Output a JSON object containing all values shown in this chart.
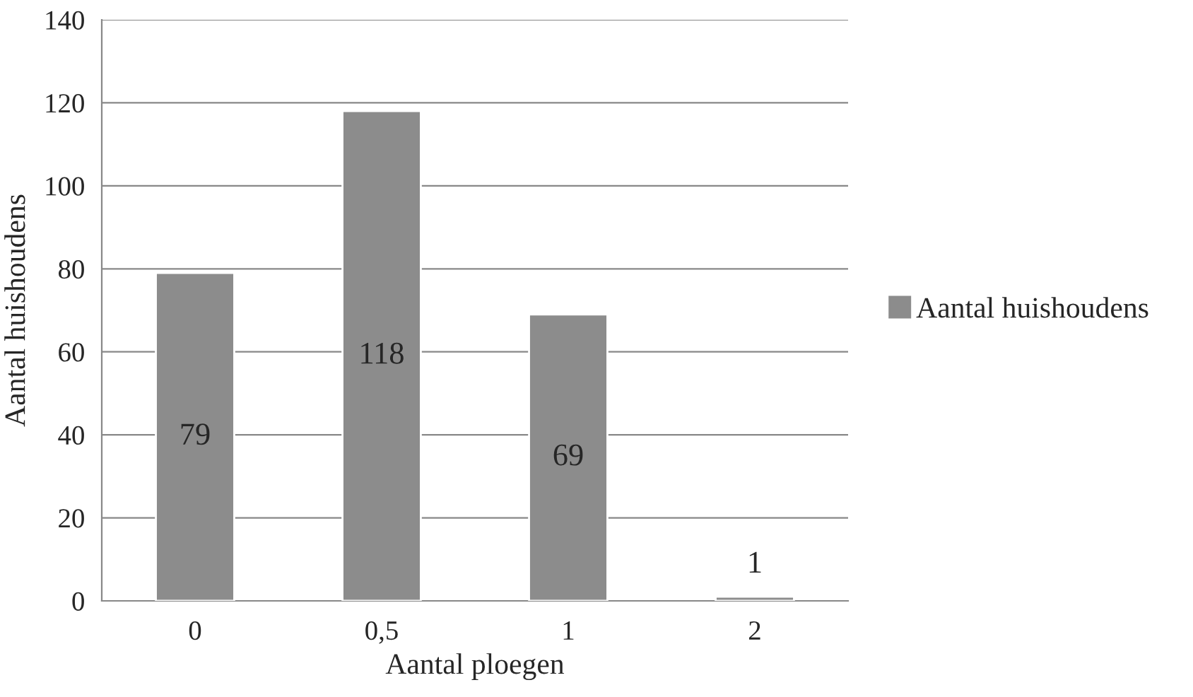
{
  "chart_data": {
    "type": "bar",
    "xlabel": "Aantal ploegen",
    "ylabel": "Aantal huishoudens",
    "categories": [
      "0",
      "0,5",
      "1",
      "2"
    ],
    "series": [
      {
        "name": "Aantal huishoudens",
        "color": "#8c8c8c",
        "values": [
          79,
          118,
          69,
          1
        ]
      }
    ],
    "ylim": [
      0,
      140
    ],
    "yticks": [
      0,
      20,
      40,
      60,
      80,
      100,
      120,
      140
    ],
    "grid": "y",
    "legend": "right",
    "data_labels": true
  }
}
